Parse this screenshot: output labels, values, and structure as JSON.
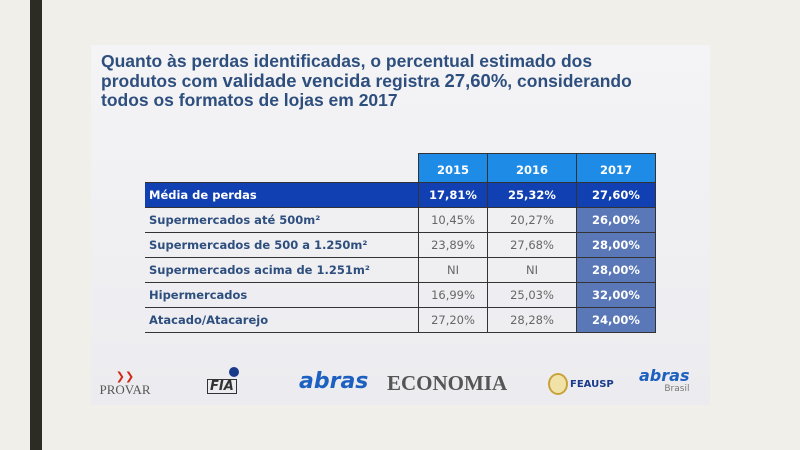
{
  "title": {
    "part1": "Quanto às perdas identificadas, o percentual estimado dos produtos com ",
    "highlight1": "validade vencida",
    "part2": " registra ",
    "highlight2": "27,60%",
    "part3": ", considerando todos os formatos de lojas em 2017"
  },
  "table": {
    "columns": [
      "2015",
      "2016",
      "2017"
    ],
    "rows": [
      {
        "label": "Média de perdas",
        "values": [
          "17,81%",
          "25,32%",
          "27,60%"
        ]
      },
      {
        "label": "Supermercados até 500m²",
        "values": [
          "10,45%",
          "20,27%",
          "26,00%"
        ]
      },
      {
        "label": "Supermercados de 500 a 1.250m²",
        "values": [
          "23,89%",
          "27,68%",
          "28,00%"
        ]
      },
      {
        "label": "Supermercados acima de 1.251m²",
        "values": [
          "NI",
          "NI",
          "28,00%"
        ]
      },
      {
        "label": "Hipermercados",
        "values": [
          "16,99%",
          "25,03%",
          "32,00%"
        ]
      },
      {
        "label": "Atacado/Atacarejo",
        "values": [
          "27,20%",
          "28,28%",
          "24,00%"
        ]
      }
    ]
  },
  "logos": {
    "provar": "PROVAR",
    "fia": "FIA",
    "abras": "abras",
    "economia": "ECONOMIA",
    "feausp": "FEAUSP",
    "abras_brasil": "abras",
    "brasil": "Brasil"
  }
}
